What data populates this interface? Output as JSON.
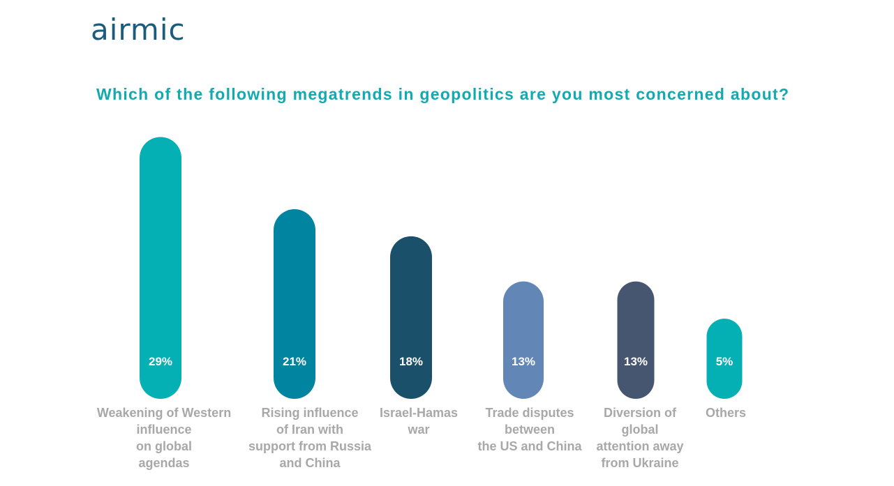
{
  "brand": {
    "logo_text": "airmic"
  },
  "chart_data": {
    "type": "bar",
    "title": "Which of the following megatrends in geopolitics are you most concerned about?",
    "categories": [
      "Weakening of Western\ninfluence\non global\nagendas",
      "Rising influence\nof Iran with\nsupport from Russia\nand China",
      "Israel-Hamas\nwar",
      "Trade disputes\nbetween\nthe US and China",
      "Diversion of\nglobal\nattention away\nfrom Ukraine",
      "Others"
    ],
    "values": [
      29,
      21,
      18,
      13,
      13,
      5
    ],
    "value_labels": [
      "29%",
      "21%",
      "18%",
      "13%",
      "13%",
      "5%"
    ],
    "colors": [
      "#05b0b5",
      "#0084a0",
      "#1b506a",
      "#6286b6",
      "#465670",
      "#05b0b5"
    ],
    "xlabel": "",
    "ylabel": "",
    "grid": false
  }
}
